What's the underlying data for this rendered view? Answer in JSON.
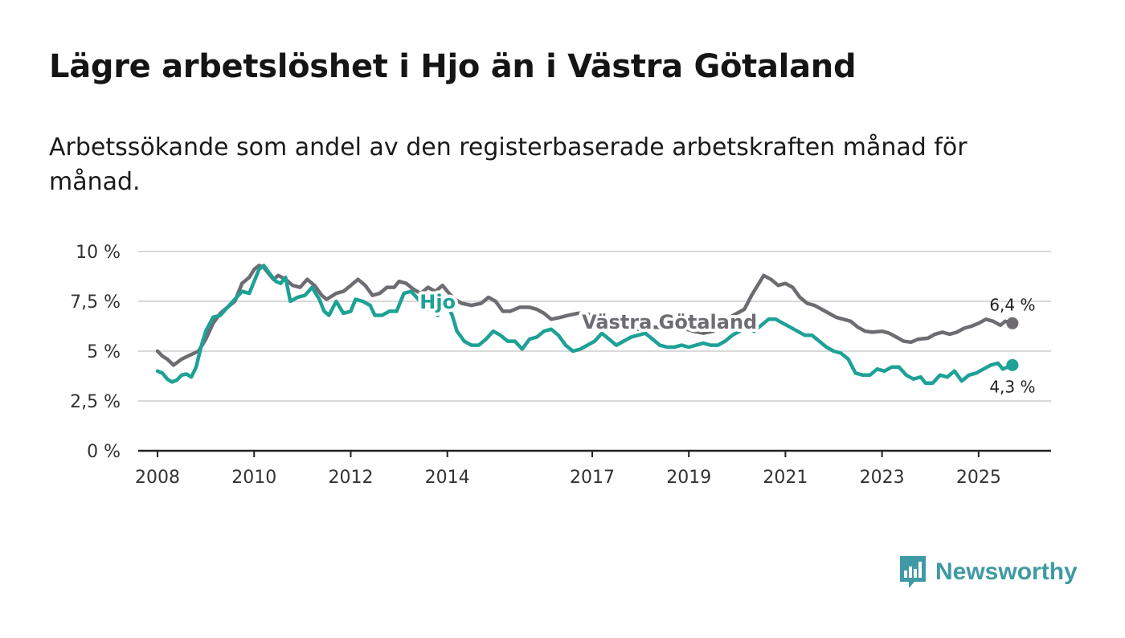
{
  "title": "Lägre arbetslöshet i Hjo än i Västra Götaland",
  "subtitle": "Arbetssökande som andel av den registerbaserade arbetskraften månad för månad.",
  "brand": {
    "name": "Newsworthy",
    "color": "#3f9aa3"
  },
  "chart_data": {
    "type": "line",
    "title": "Lägre arbetslöshet i Hjo än i Västra Götaland",
    "xlabel": "",
    "ylabel": "",
    "xlim": [
      2007.6,
      2026.5
    ],
    "ylim": [
      0,
      10
    ],
    "grid": true,
    "x_ticks": [
      2008,
      2010,
      2012,
      2014,
      2017,
      2019,
      2021,
      2023,
      2025
    ],
    "y_ticks": [
      {
        "value": 0,
        "label": "0 %"
      },
      {
        "value": 2.5,
        "label": "2,5 %"
      },
      {
        "value": 5,
        "label": "5 %"
      },
      {
        "value": 7.5,
        "label": "7,5 %"
      },
      {
        "value": 10,
        "label": "10 %"
      }
    ],
    "series": [
      {
        "name": "Västra Götaland",
        "color": "#6e6c72",
        "end_label": "6,4 %",
        "points": [
          [
            2008.0,
            5.0
          ],
          [
            2008.1,
            4.75
          ],
          [
            2008.2,
            4.6
          ],
          [
            2008.33,
            4.3
          ],
          [
            2008.5,
            4.6
          ],
          [
            2008.67,
            4.8
          ],
          [
            2008.85,
            5.0
          ],
          [
            2009.0,
            5.6
          ],
          [
            2009.15,
            6.4
          ],
          [
            2009.3,
            6.9
          ],
          [
            2009.45,
            7.2
          ],
          [
            2009.6,
            7.5
          ],
          [
            2009.75,
            8.4
          ],
          [
            2009.9,
            8.7
          ],
          [
            2010.0,
            9.1
          ],
          [
            2010.1,
            9.3
          ],
          [
            2010.2,
            9.2
          ],
          [
            2010.3,
            8.9
          ],
          [
            2010.4,
            8.6
          ],
          [
            2010.5,
            8.8
          ],
          [
            2010.65,
            8.6
          ],
          [
            2010.8,
            8.3
          ],
          [
            2010.95,
            8.2
          ],
          [
            2011.1,
            8.6
          ],
          [
            2011.25,
            8.3
          ],
          [
            2011.4,
            7.8
          ],
          [
            2011.5,
            7.6
          ],
          [
            2011.7,
            7.9
          ],
          [
            2011.85,
            8.0
          ],
          [
            2012.0,
            8.3
          ],
          [
            2012.15,
            8.6
          ],
          [
            2012.3,
            8.3
          ],
          [
            2012.45,
            7.8
          ],
          [
            2012.6,
            7.9
          ],
          [
            2012.75,
            8.2
          ],
          [
            2012.9,
            8.2
          ],
          [
            2013.0,
            8.5
          ],
          [
            2013.15,
            8.4
          ],
          [
            2013.3,
            8.1
          ],
          [
            2013.45,
            7.9
          ],
          [
            2013.6,
            8.2
          ],
          [
            2013.75,
            8.0
          ],
          [
            2013.9,
            8.3
          ],
          [
            2014.0,
            8.0
          ],
          [
            2014.15,
            7.6
          ],
          [
            2014.3,
            7.4
          ],
          [
            2014.5,
            7.3
          ],
          [
            2014.7,
            7.4
          ],
          [
            2014.85,
            7.7
          ],
          [
            2015.0,
            7.5
          ],
          [
            2015.15,
            7.0
          ],
          [
            2015.3,
            7.0
          ],
          [
            2015.5,
            7.2
          ],
          [
            2015.7,
            7.2
          ],
          [
            2015.85,
            7.1
          ],
          [
            2016.0,
            6.9
          ],
          [
            2016.15,
            6.6
          ],
          [
            2016.35,
            6.7
          ],
          [
            2016.5,
            6.8
          ],
          [
            2016.7,
            6.9
          ],
          [
            2016.85,
            6.9
          ],
          [
            2017.0,
            6.8
          ],
          [
            2017.2,
            6.5
          ],
          [
            2017.4,
            6.3
          ],
          [
            2017.55,
            6.4
          ],
          [
            2017.75,
            6.2
          ],
          [
            2017.95,
            6.1
          ],
          [
            2018.15,
            6.2
          ],
          [
            2018.35,
            6.2
          ],
          [
            2018.55,
            6.1
          ],
          [
            2018.75,
            6.2
          ],
          [
            2018.95,
            6.1
          ],
          [
            2019.1,
            6.0
          ],
          [
            2019.3,
            5.9
          ],
          [
            2019.5,
            6.0
          ],
          [
            2019.7,
            6.3
          ],
          [
            2019.85,
            6.7
          ],
          [
            2020.0,
            6.9
          ],
          [
            2020.15,
            7.1
          ],
          [
            2020.3,
            7.8
          ],
          [
            2020.45,
            8.4
          ],
          [
            2020.55,
            8.8
          ],
          [
            2020.7,
            8.6
          ],
          [
            2020.85,
            8.3
          ],
          [
            2021.0,
            8.4
          ],
          [
            2021.15,
            8.2
          ],
          [
            2021.3,
            7.7
          ],
          [
            2021.45,
            7.4
          ],
          [
            2021.6,
            7.3
          ],
          [
            2021.75,
            7.1
          ],
          [
            2021.9,
            6.9
          ],
          [
            2022.05,
            6.7
          ],
          [
            2022.2,
            6.6
          ],
          [
            2022.35,
            6.5
          ],
          [
            2022.5,
            6.2
          ],
          [
            2022.65,
            6.0
          ],
          [
            2022.8,
            5.95
          ],
          [
            2023.0,
            6.0
          ],
          [
            2023.15,
            5.9
          ],
          [
            2023.3,
            5.7
          ],
          [
            2023.45,
            5.5
          ],
          [
            2023.6,
            5.45
          ],
          [
            2023.75,
            5.6
          ],
          [
            2023.95,
            5.65
          ],
          [
            2024.1,
            5.85
          ],
          [
            2024.25,
            5.95
          ],
          [
            2024.4,
            5.85
          ],
          [
            2024.55,
            5.95
          ],
          [
            2024.7,
            6.15
          ],
          [
            2024.85,
            6.25
          ],
          [
            2025.0,
            6.4
          ],
          [
            2025.15,
            6.6
          ],
          [
            2025.3,
            6.5
          ],
          [
            2025.45,
            6.3
          ],
          [
            2025.55,
            6.5
          ],
          [
            2025.7,
            6.4
          ]
        ]
      },
      {
        "name": "Hjo",
        "color": "#1ea196",
        "end_label": "4,3 %",
        "points": [
          [
            2008.0,
            4.0
          ],
          [
            2008.1,
            3.9
          ],
          [
            2008.2,
            3.6
          ],
          [
            2008.3,
            3.45
          ],
          [
            2008.4,
            3.55
          ],
          [
            2008.5,
            3.8
          ],
          [
            2008.6,
            3.85
          ],
          [
            2008.7,
            3.7
          ],
          [
            2008.8,
            4.2
          ],
          [
            2008.9,
            5.2
          ],
          [
            2009.0,
            6.0
          ],
          [
            2009.15,
            6.7
          ],
          [
            2009.3,
            6.8
          ],
          [
            2009.45,
            7.2
          ],
          [
            2009.6,
            7.6
          ],
          [
            2009.75,
            8.0
          ],
          [
            2009.9,
            7.9
          ],
          [
            2010.0,
            8.5
          ],
          [
            2010.1,
            9.1
          ],
          [
            2010.2,
            9.3
          ],
          [
            2010.35,
            8.8
          ],
          [
            2010.45,
            8.5
          ],
          [
            2010.55,
            8.4
          ],
          [
            2010.65,
            8.7
          ],
          [
            2010.75,
            7.5
          ],
          [
            2010.9,
            7.7
          ],
          [
            2011.05,
            7.8
          ],
          [
            2011.2,
            8.2
          ],
          [
            2011.35,
            7.6
          ],
          [
            2011.45,
            7.0
          ],
          [
            2011.55,
            6.8
          ],
          [
            2011.7,
            7.5
          ],
          [
            2011.85,
            6.9
          ],
          [
            2012.0,
            7.0
          ],
          [
            2012.1,
            7.6
          ],
          [
            2012.25,
            7.5
          ],
          [
            2012.4,
            7.3
          ],
          [
            2012.5,
            6.8
          ],
          [
            2012.65,
            6.8
          ],
          [
            2012.8,
            7.0
          ],
          [
            2012.95,
            7.0
          ],
          [
            2013.1,
            7.9
          ],
          [
            2013.25,
            8.0
          ],
          [
            2013.4,
            7.6
          ],
          [
            2013.55,
            7.1
          ],
          [
            2013.7,
            7.1
          ],
          [
            2013.8,
            6.8
          ],
          [
            2013.95,
            7.6
          ],
          [
            2014.1,
            6.8
          ],
          [
            2014.2,
            6.0
          ],
          [
            2014.35,
            5.5
          ],
          [
            2014.5,
            5.3
          ],
          [
            2014.65,
            5.3
          ],
          [
            2014.8,
            5.6
          ],
          [
            2014.95,
            6.0
          ],
          [
            2015.1,
            5.8
          ],
          [
            2015.25,
            5.5
          ],
          [
            2015.4,
            5.5
          ],
          [
            2015.55,
            5.1
          ],
          [
            2015.7,
            5.6
          ],
          [
            2015.85,
            5.7
          ],
          [
            2016.0,
            6.0
          ],
          [
            2016.15,
            6.1
          ],
          [
            2016.3,
            5.8
          ],
          [
            2016.45,
            5.3
          ],
          [
            2016.6,
            5.0
          ],
          [
            2016.75,
            5.1
          ],
          [
            2016.9,
            5.3
          ],
          [
            2017.05,
            5.5
          ],
          [
            2017.2,
            5.9
          ],
          [
            2017.35,
            5.6
          ],
          [
            2017.5,
            5.3
          ],
          [
            2017.65,
            5.5
          ],
          [
            2017.8,
            5.7
          ],
          [
            2017.95,
            5.8
          ],
          [
            2018.1,
            5.9
          ],
          [
            2018.25,
            5.6
          ],
          [
            2018.4,
            5.3
          ],
          [
            2018.55,
            5.2
          ],
          [
            2018.7,
            5.2
          ],
          [
            2018.85,
            5.3
          ],
          [
            2019.0,
            5.2
          ],
          [
            2019.15,
            5.3
          ],
          [
            2019.3,
            5.4
          ],
          [
            2019.45,
            5.3
          ],
          [
            2019.6,
            5.3
          ],
          [
            2019.75,
            5.5
          ],
          [
            2019.9,
            5.8
          ],
          [
            2020.05,
            6.0
          ],
          [
            2020.2,
            6.3
          ],
          [
            2020.35,
            6.0
          ],
          [
            2020.5,
            6.3
          ],
          [
            2020.65,
            6.6
          ],
          [
            2020.8,
            6.6
          ],
          [
            2020.95,
            6.4
          ],
          [
            2021.1,
            6.2
          ],
          [
            2021.25,
            6.0
          ],
          [
            2021.4,
            5.8
          ],
          [
            2021.55,
            5.8
          ],
          [
            2021.7,
            5.5
          ],
          [
            2021.85,
            5.2
          ],
          [
            2022.0,
            5.0
          ],
          [
            2022.15,
            4.9
          ],
          [
            2022.3,
            4.6
          ],
          [
            2022.45,
            3.9
          ],
          [
            2022.6,
            3.8
          ],
          [
            2022.75,
            3.8
          ],
          [
            2022.9,
            4.1
          ],
          [
            2023.05,
            4.0
          ],
          [
            2023.2,
            4.2
          ],
          [
            2023.35,
            4.2
          ],
          [
            2023.5,
            3.8
          ],
          [
            2023.65,
            3.6
          ],
          [
            2023.8,
            3.7
          ],
          [
            2023.9,
            3.4
          ],
          [
            2024.05,
            3.4
          ],
          [
            2024.2,
            3.8
          ],
          [
            2024.35,
            3.7
          ],
          [
            2024.5,
            4.0
          ],
          [
            2024.65,
            3.5
          ],
          [
            2024.8,
            3.8
          ],
          [
            2024.95,
            3.9
          ],
          [
            2025.1,
            4.1
          ],
          [
            2025.25,
            4.3
          ],
          [
            2025.4,
            4.4
          ],
          [
            2025.5,
            4.1
          ],
          [
            2025.6,
            4.2
          ],
          [
            2025.7,
            4.3
          ]
        ]
      }
    ],
    "series_labels": [
      {
        "text": "Hjo",
        "x": 2013.8,
        "y": 7.5,
        "series": "Hjo"
      },
      {
        "text": "Västra Götaland",
        "x": 2018.6,
        "y": 6.5,
        "series": "Västra Götaland"
      }
    ]
  }
}
